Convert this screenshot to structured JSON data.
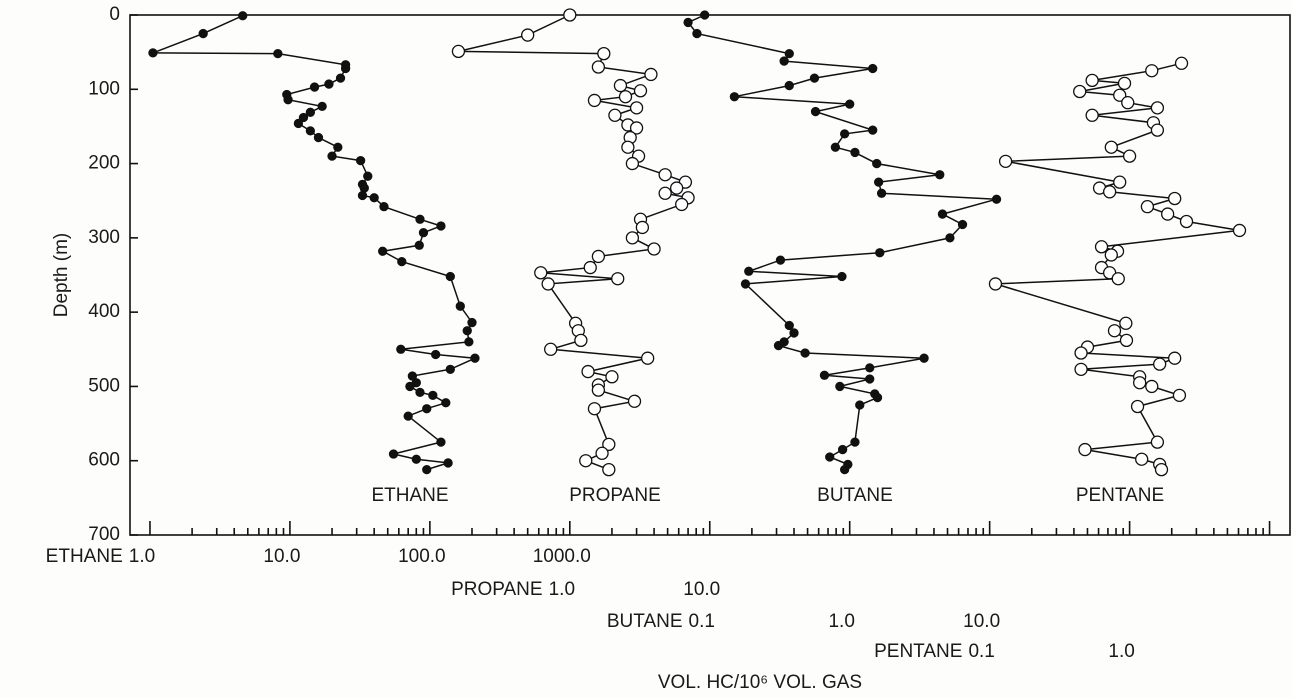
{
  "chart_data": {
    "type": "line",
    "ylabel": "Depth (m)",
    "xlabel": "VOL. HC/10⁶ VOL. GAS",
    "ylim": [
      0,
      700
    ],
    "y_inverted": true,
    "yticks": [
      0,
      100,
      200,
      300,
      400,
      500,
      600,
      700
    ],
    "x_log": true,
    "xlim": [
      0.72,
      140000000
    ],
    "xticks": [
      1,
      2,
      3,
      4,
      5,
      6,
      7,
      8,
      9,
      10,
      20,
      30,
      40,
      50,
      60,
      70,
      80,
      90,
      100,
      200,
      300,
      400,
      500,
      600,
      700,
      800,
      900,
      1000,
      2000,
      3000,
      4000,
      5000,
      6000,
      7000,
      8000,
      9000,
      10000,
      20000,
      30000,
      40000,
      50000,
      60000,
      70000,
      80000,
      90000,
      100000,
      200000,
      300000,
      400000,
      500000,
      600000,
      700000,
      800000,
      900000,
      1000000,
      2000000,
      3000000,
      4000000,
      5000000,
      6000000,
      7000000,
      8000000,
      9000000,
      10000000,
      20000000,
      30000000,
      40000000,
      50000000,
      60000000,
      70000000,
      80000000,
      90000000,
      100000000
    ],
    "series": [
      {
        "name": "ETHANE",
        "marker": "filled",
        "color": "#111111",
        "xlim": [
          0.72,
          140000000
        ],
        "xticks": [
          {
            "value": 1,
            "label": "1.0"
          },
          {
            "value": 10,
            "label": "10.0"
          },
          {
            "value": 100,
            "label": "100.0"
          },
          {
            "value": 1000,
            "label": "1000.0"
          }
        ],
        "depth": [
          1,
          25,
          51,
          52,
          67,
          72,
          85,
          93,
          97,
          107,
          114,
          123,
          131,
          138,
          146,
          156,
          165,
          178,
          190,
          196,
          217,
          228,
          233,
          243,
          246,
          258,
          275,
          284,
          293,
          310,
          318,
          332,
          352,
          392,
          414,
          425,
          440,
          450,
          457,
          462,
          477,
          486,
          495,
          500,
          508,
          512,
          522,
          530,
          540,
          575,
          591,
          598,
          603,
          612
        ],
        "values": [
          4.6,
          2.4,
          1.05,
          8.2,
          25,
          25,
          23,
          19,
          15,
          9.5,
          9.7,
          17,
          14,
          12.5,
          11.5,
          14,
          16,
          22,
          20,
          32,
          36,
          33,
          34,
          33,
          40,
          47,
          85,
          120,
          90,
          84,
          46,
          63,
          140,
          165,
          200,
          185,
          190,
          62,
          110,
          210,
          140,
          75,
          80,
          72,
          85,
          105,
          130,
          95,
          70,
          120,
          55,
          80,
          135,
          95
        ]
      },
      {
        "name": "PROPANE",
        "marker": "open",
        "color": "#111111",
        "xlim": [
          0.00072,
          140000
        ],
        "xticks": [
          {
            "value": 1,
            "label": "1.0"
          },
          {
            "value": 10,
            "label": "10.0"
          }
        ],
        "depth": [
          0,
          27,
          49,
          52,
          70,
          80,
          95,
          102,
          110,
          115,
          125,
          135,
          148,
          152,
          165,
          178,
          190,
          200,
          215,
          225,
          233,
          240,
          246,
          255,
          275,
          286,
          300,
          315,
          325,
          340,
          347,
          355,
          362,
          415,
          425,
          438,
          450,
          462,
          480,
          487,
          498,
          505,
          520,
          530,
          578,
          590,
          600,
          612
        ],
        "values": [
          1.0,
          0.5,
          0.16,
          1.75,
          1.6,
          3.8,
          2.3,
          3.2,
          2.5,
          1.5,
          3.0,
          2.1,
          2.6,
          3.0,
          2.7,
          2.6,
          3.1,
          2.8,
          4.8,
          6.7,
          5.8,
          4.8,
          7.0,
          6.3,
          3.2,
          3.3,
          2.8,
          4.0,
          1.6,
          1.4,
          0.62,
          2.2,
          0.7,
          1.1,
          1.15,
          1.2,
          0.73,
          3.6,
          1.35,
          2.0,
          1.6,
          1.6,
          2.9,
          1.5,
          1.9,
          1.7,
          1.3,
          1.9
        ]
      },
      {
        "name": "BUTANE",
        "marker": "filled",
        "color": "#111111",
        "xlim": [
          7.2e-06,
          1400
        ],
        "xticks": [
          0.1,
          {
            "value": 1,
            "label": "1.0"
          },
          {
            "value": 10,
            "label": "10.0"
          }
        ],
        "depth": [
          0,
          10,
          25,
          52,
          62,
          72,
          85,
          95,
          110,
          120,
          130,
          155,
          160,
          178,
          185,
          200,
          215,
          225,
          240,
          248,
          268,
          282,
          300,
          320,
          330,
          345,
          352,
          362,
          418,
          428,
          440,
          445,
          455,
          462,
          475,
          485,
          490,
          500,
          510,
          515,
          525,
          575,
          585,
          595,
          605,
          612
        ],
        "values": [
          0.092,
          0.07,
          0.081,
          0.37,
          0.34,
          1.46,
          0.56,
          0.37,
          0.15,
          1.0,
          0.57,
          1.46,
          0.92,
          0.79,
          1.09,
          1.56,
          4.4,
          1.61,
          1.69,
          11.2,
          4.6,
          6.4,
          5.2,
          1.64,
          0.32,
          0.19,
          0.88,
          0.18,
          0.37,
          0.4,
          0.34,
          0.31,
          0.48,
          3.4,
          1.39,
          0.66,
          1.39,
          0.85,
          1.51,
          1.58,
          1.18,
          1.09,
          0.89,
          0.72,
          0.97,
          0.92
        ]
      },
      {
        "name": "PENTANE",
        "marker": "open",
        "color": "#111111",
        "xlim": [
          7.2e-08,
          14
        ],
        "xticks": [
          0.1,
          {
            "value": 1,
            "label": "1.0"
          }
        ],
        "depth": [
          65,
          75,
          88,
          92,
          103,
          108,
          118,
          125,
          135,
          145,
          155,
          178,
          190,
          197,
          225,
          233,
          238,
          247,
          258,
          268,
          278,
          290,
          312,
          318,
          323,
          340,
          347,
          355,
          362,
          415,
          425,
          438,
          447,
          455,
          462,
          470,
          477,
          487,
          495,
          500,
          512,
          527,
          575,
          585,
          598,
          605,
          612
        ],
        "values": [
          2.35,
          1.44,
          0.54,
          0.92,
          0.44,
          0.85,
          0.97,
          1.58,
          0.54,
          1.48,
          1.58,
          0.74,
          1.0,
          0.13,
          0.85,
          0.61,
          0.72,
          2.1,
          1.34,
          1.87,
          2.55,
          6.1,
          0.63,
          0.82,
          0.74,
          0.63,
          0.72,
          0.83,
          0.11,
          0.94,
          0.78,
          0.95,
          0.5,
          0.45,
          2.1,
          1.64,
          0.45,
          1.18,
          1.18,
          1.44,
          2.27,
          1.14,
          1.58,
          0.48,
          1.22,
          1.64,
          1.69
        ]
      }
    ]
  }
}
